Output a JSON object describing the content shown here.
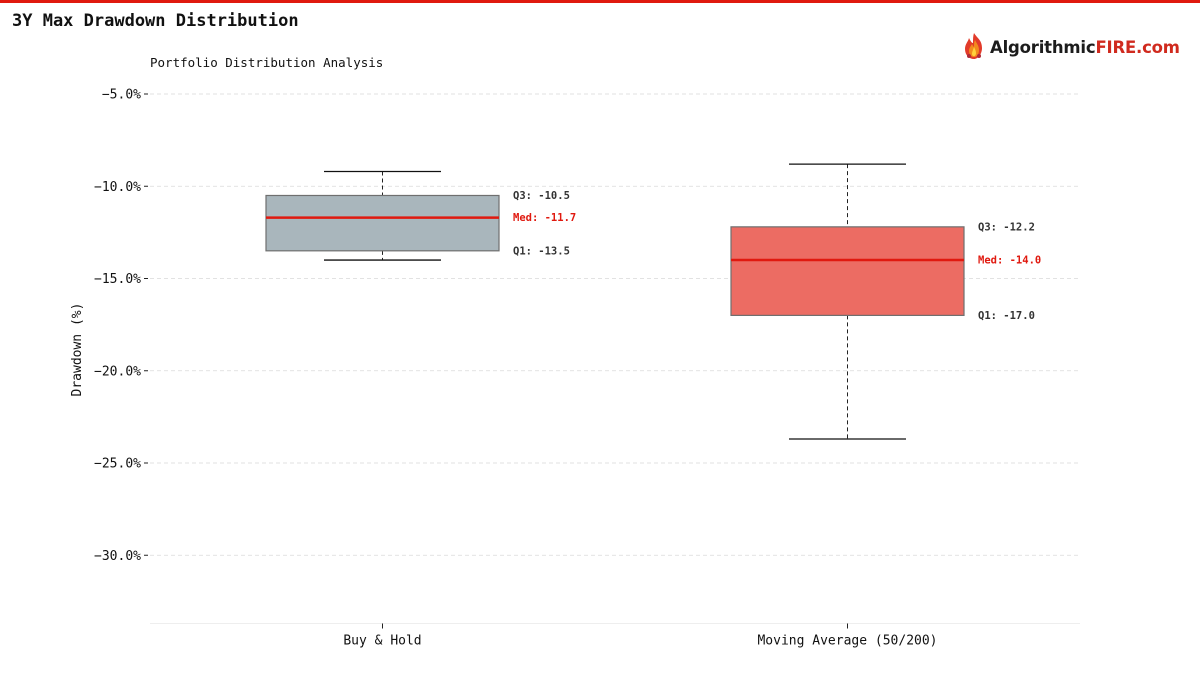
{
  "page": {
    "title": "3Y Max Drawdown Distribution",
    "accent_color": "#e0190f"
  },
  "brand": {
    "icon": "flame-logo-icon",
    "text_dark": "Algorithmic",
    "text_red": "FIRE.com",
    "color_dark": "#1c1c1c",
    "color_red": "#d02a1e"
  },
  "chart_data": {
    "type": "box",
    "title": "",
    "subtitle": "Portfolio Distribution Analysis",
    "xlabel": "",
    "ylabel": "Drawdown (%)",
    "ylim": [
      -33.7,
      -4.0
    ],
    "yticks": [
      -5,
      -10,
      -15,
      -20,
      -25,
      -30
    ],
    "ytick_labels": [
      "−5.0%",
      "−10.0%",
      "−15.0%",
      "−20.0%",
      "−25.0%",
      "−30.0%"
    ],
    "grid": true,
    "median_color": "#e0190f",
    "series": [
      {
        "category": "Buy & Hold",
        "whisker_low": -14.0,
        "q1": -13.5,
        "median": -11.7,
        "q3": -10.5,
        "whisker_high": -9.2,
        "color": "#a9b6bc",
        "q3_label": "Q3: -10.5",
        "median_label": "Med: -11.7",
        "q1_label": "Q1: -13.5"
      },
      {
        "category": "Moving Average (50/200)",
        "whisker_low": -23.7,
        "q1": -17.0,
        "median": -14.0,
        "q3": -12.2,
        "whisker_high": -8.8,
        "color": "#ec6c63",
        "q3_label": "Q3: -12.2",
        "median_label": "Med: -14.0",
        "q1_label": "Q1: -17.0"
      }
    ]
  }
}
